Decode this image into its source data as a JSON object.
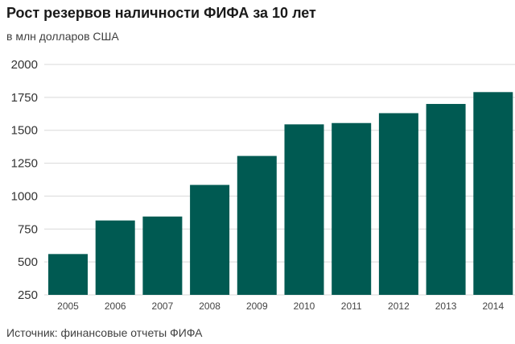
{
  "header": {
    "title": "Рост резервов наличности ФИФА за 10 лет",
    "subtitle": "в млн долларов США"
  },
  "footer": {
    "source": "Источник: финансовые отчеты ФИФА"
  },
  "colors": {
    "bar": "#005a52",
    "grid": "#d9d9d9",
    "background": "#ffffff"
  },
  "chart_data": {
    "type": "bar",
    "title": "Рост резервов наличности ФИФА за 10 лет",
    "subtitle": "в млн долларов США",
    "xlabel": "",
    "ylabel": "",
    "categories": [
      "2005",
      "2006",
      "2007",
      "2008",
      "2009",
      "2010",
      "2011",
      "2012",
      "2013",
      "2014"
    ],
    "values": [
      560,
      815,
      845,
      1085,
      1305,
      1545,
      1555,
      1630,
      1700,
      1790
    ],
    "ylim": [
      250,
      2000
    ],
    "yticks": [
      250,
      500,
      750,
      1000,
      1250,
      1500,
      1750,
      2000
    ],
    "grid": true,
    "legend": "none"
  }
}
